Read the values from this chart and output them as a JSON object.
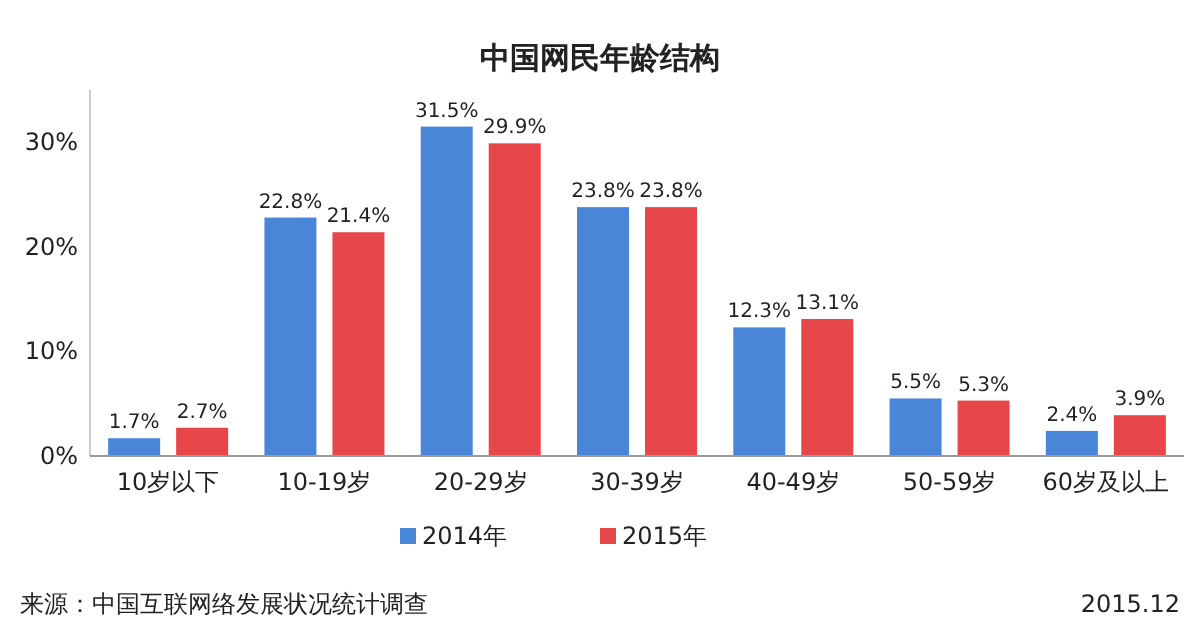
{
  "chart_data": {
    "type": "bar",
    "title": "中国网民年龄结构",
    "categories": [
      "10岁以下",
      "10-19岁",
      "20-29岁",
      "30-39岁",
      "40-49岁",
      "50-59岁",
      "60岁及以上"
    ],
    "series": [
      {
        "name": "2014年",
        "color": "#4a86d8",
        "values": [
          1.7,
          22.8,
          31.5,
          23.8,
          12.3,
          5.5,
          2.4
        ],
        "value_labels": [
          "1.7%",
          "22.8%",
          "31.5%",
          "23.8%",
          "12.3%",
          "5.5%",
          "2.4%"
        ]
      },
      {
        "name": "2015年",
        "color": "#e8474a",
        "values": [
          2.7,
          21.4,
          29.9,
          23.8,
          13.1,
          5.3,
          3.9
        ],
        "value_labels": [
          "2.7%",
          "21.4%",
          "29.9%",
          "23.8%",
          "13.1%",
          "5.3%",
          "3.9%"
        ]
      }
    ],
    "ylim": [
      0,
      35
    ],
    "yticks": [
      {
        "value": 0,
        "label": "0%"
      },
      {
        "value": 10,
        "label": "10%"
      },
      {
        "value": 20,
        "label": "20%"
      },
      {
        "value": 30,
        "label": "30%"
      }
    ],
    "legend": "bottom",
    "annotations": [
      "来源：中国互联网络发展状况统计调查",
      "2015.12"
    ]
  }
}
